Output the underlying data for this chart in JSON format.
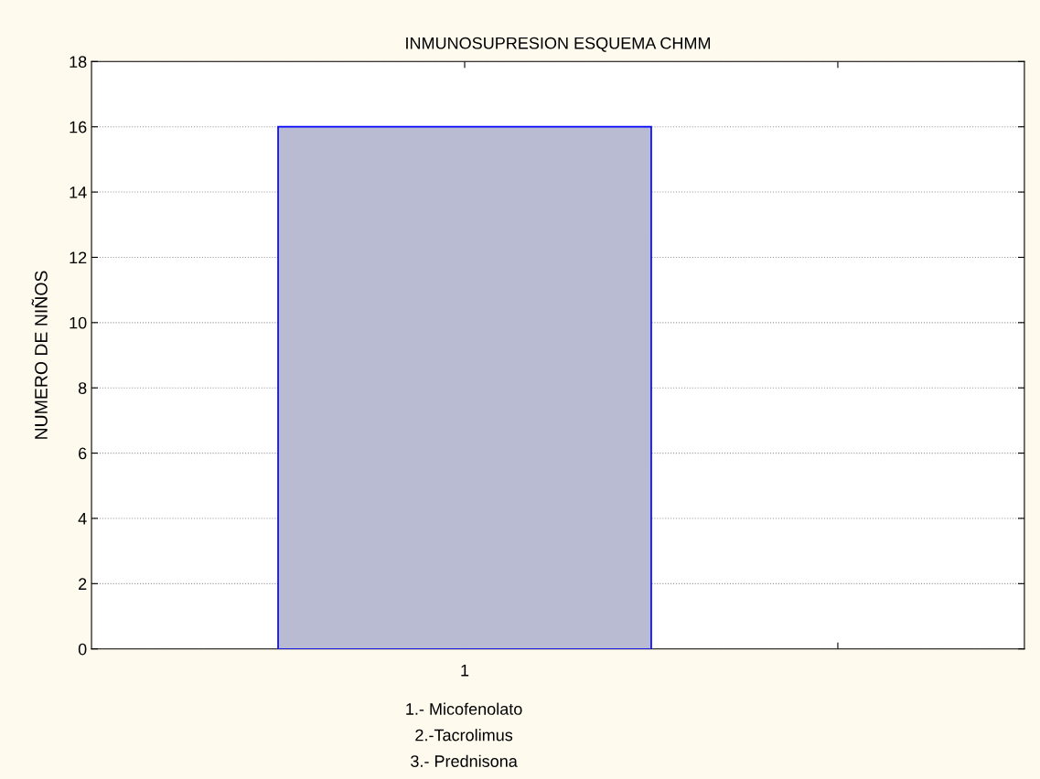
{
  "chart_data": {
    "type": "bar",
    "title": "INMUNOSUPRESION ESQUEMA CHMM",
    "ylabel": "NUMERO DE NIÑOS",
    "categories": [
      "1",
      null
    ],
    "series": [
      {
        "color": "#b9bbd3",
        "values": [
          16,
          null
        ]
      }
    ],
    "ylim": [
      0,
      18
    ],
    "yticks": [
      0,
      2,
      4,
      6,
      8,
      10,
      12,
      14,
      16,
      18
    ],
    "grid": "y",
    "legend": false,
    "annotations": [
      "1.- Micofenolato",
      "2.-Tacrolimus",
      "3.- Prednisona"
    ]
  }
}
